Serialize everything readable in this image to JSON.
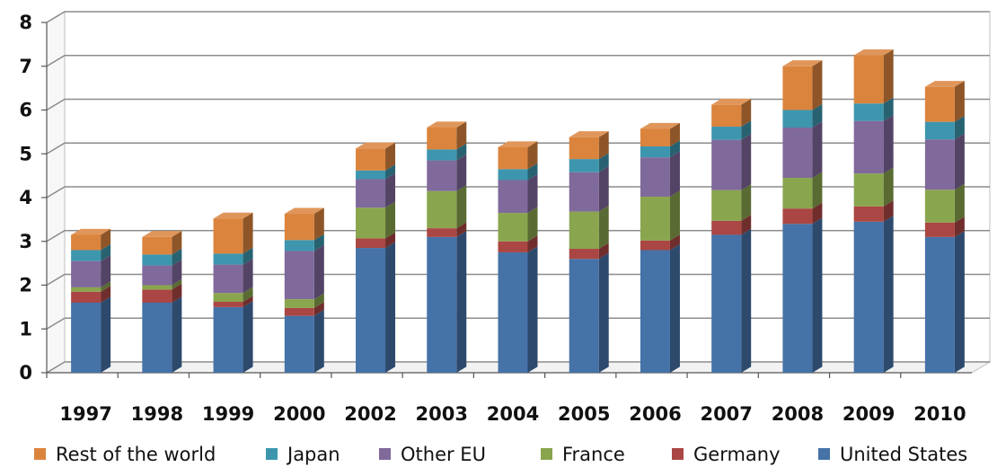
{
  "chart_data": {
    "type": "bar",
    "stacked": true,
    "three_d": true,
    "title": "",
    "xlabel": "",
    "ylabel": "",
    "categories": [
      "1997",
      "1998",
      "1999",
      "2000",
      "2002",
      "2003",
      "2004",
      "2005",
      "2006",
      "2007",
      "2008",
      "2009",
      "2010"
    ],
    "ylim": [
      0,
      8
    ],
    "yticks": [
      0,
      1,
      2,
      3,
      4,
      5,
      6,
      7,
      8
    ],
    "grid": true,
    "legend_position": "bottom",
    "series": [
      {
        "name": "United States",
        "color": "#4572a7",
        "values": [
          1.6,
          1.6,
          1.5,
          1.3,
          2.85,
          3.1,
          2.75,
          2.6,
          2.8,
          3.15,
          3.4,
          3.45,
          3.1
        ]
      },
      {
        "name": "Germany",
        "color": "#aa4643",
        "values": [
          0.25,
          0.3,
          0.12,
          0.18,
          0.22,
          0.2,
          0.25,
          0.23,
          0.22,
          0.32,
          0.35,
          0.35,
          0.33
        ]
      },
      {
        "name": "France",
        "color": "#89a54e",
        "values": [
          0.1,
          0.1,
          0.2,
          0.2,
          0.7,
          0.85,
          0.65,
          0.85,
          1.0,
          0.7,
          0.7,
          0.75,
          0.75
        ]
      },
      {
        "name": "Other EU",
        "color": "#80699b",
        "values": [
          0.6,
          0.45,
          0.65,
          1.1,
          0.65,
          0.7,
          0.75,
          0.9,
          0.9,
          1.15,
          1.15,
          1.2,
          1.15
        ]
      },
      {
        "name": "Japan",
        "color": "#3d96ae",
        "values": [
          0.25,
          0.25,
          0.25,
          0.25,
          0.2,
          0.25,
          0.25,
          0.3,
          0.25,
          0.3,
          0.4,
          0.4,
          0.4
        ]
      },
      {
        "name": "Rest of the world",
        "color": "#db843d",
        "values": [
          0.35,
          0.4,
          0.8,
          0.6,
          0.5,
          0.5,
          0.5,
          0.5,
          0.4,
          0.5,
          1.0,
          1.1,
          0.8
        ]
      }
    ],
    "legend_order": [
      "Rest of the world",
      "Japan",
      "Other EU",
      "France",
      "Germany",
      "United States"
    ]
  }
}
